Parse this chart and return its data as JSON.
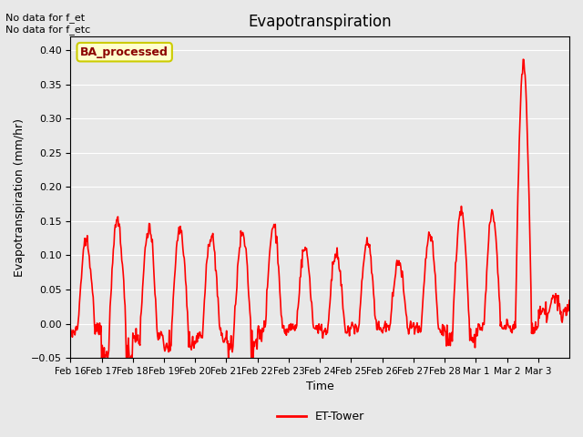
{
  "title": "Evapotranspiration",
  "xlabel": "Time",
  "ylabel": "Evapotranspiration (mm/hr)",
  "ylim": [
    -0.05,
    0.42
  ],
  "yticks": [
    -0.05,
    0.0,
    0.05,
    0.1,
    0.15,
    0.2,
    0.25,
    0.3,
    0.35,
    0.4
  ],
  "line_color": "#ff0000",
  "line_width": 1.2,
  "background_color": "#e8e8e8",
  "axes_bg_color": "#e8e8e8",
  "top_left_text": "No data for f_et\nNo data for f_etc",
  "legend_box_label": "BA_processed",
  "legend_line_label": "ET-Tower",
  "n_days": 16,
  "n_per_day": 48,
  "peak_vals": [
    0.12,
    0.15,
    0.14,
    0.14,
    0.13,
    0.13,
    0.145,
    0.11,
    0.1,
    0.12,
    0.09,
    0.13,
    0.165,
    0.16,
    0.38,
    0.04
  ],
  "neg_vals": [
    -0.01,
    -0.05,
    -0.02,
    -0.03,
    -0.02,
    -0.03,
    -0.01,
    -0.005,
    -0.01,
    -0.005,
    -0.005,
    -0.01,
    -0.02,
    -0.005,
    -0.005,
    0.02
  ],
  "x_tick_labels": [
    "Feb 16",
    "Feb 17",
    "Feb 18",
    "Feb 19",
    "Feb 20",
    "Feb 21",
    "Feb 22",
    "Feb 23",
    "Feb 24",
    "Feb 25",
    "Feb 26",
    "Feb 27",
    "Feb 28",
    "Mar 1",
    "Mar 2",
    "Mar 3"
  ]
}
